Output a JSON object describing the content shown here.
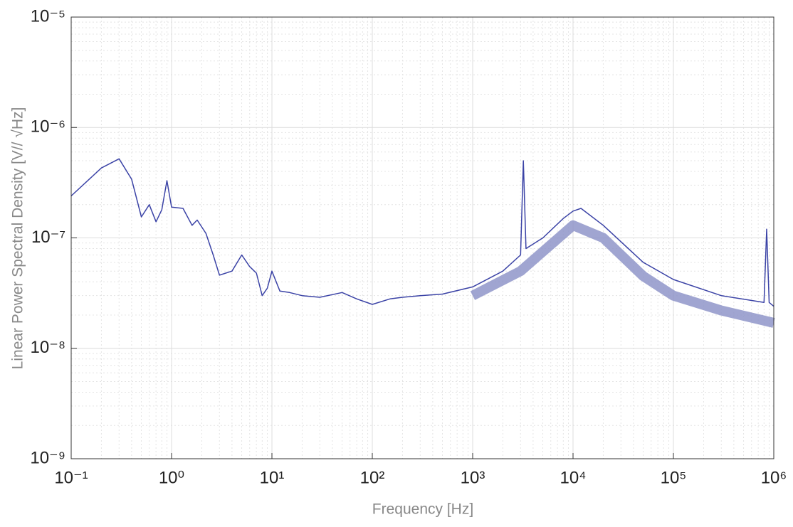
{
  "chart_data": {
    "type": "line",
    "xlabel": "Frequency [Hz]",
    "ylabel": "Linear Power Spectral Density [V// √Hz]",
    "xscale": "log",
    "yscale": "log",
    "grid": true,
    "minor_grid": true,
    "xlim": [
      0.1,
      1000000
    ],
    "ylim": [
      1e-09,
      1e-05
    ],
    "xticks": [
      {
        "value": 0.1,
        "label": "10⁻¹"
      },
      {
        "value": 1,
        "label": "10⁰"
      },
      {
        "value": 10,
        "label": "10¹"
      },
      {
        "value": 100,
        "label": "10²"
      },
      {
        "value": 1000,
        "label": "10³"
      },
      {
        "value": 10000,
        "label": "10⁴"
      },
      {
        "value": 100000,
        "label": "10⁵"
      },
      {
        "value": 1000000,
        "label": "10⁶"
      }
    ],
    "yticks": [
      {
        "value": 1e-09,
        "label": "10⁻⁹"
      },
      {
        "value": 1e-08,
        "label": "10⁻⁸"
      },
      {
        "value": 1e-07,
        "label": "10⁻⁷"
      },
      {
        "value": 1e-06,
        "label": "10⁻⁶"
      },
      {
        "value": 1e-05,
        "label": "10⁻⁵"
      }
    ],
    "series": [
      {
        "color": "#8f95c9",
        "width": 14,
        "x": [
          1000,
          3000,
          10000,
          20000,
          50000,
          100000,
          300000,
          1000000
        ],
        "values": [
          3e-08,
          5e-08,
          1.3e-07,
          1e-07,
          4.5e-08,
          3e-08,
          2.2e-08,
          1.7e-08
        ]
      },
      {
        "color": "#3b43a6",
        "width": 1.5,
        "x": [
          0.1,
          0.2,
          0.3,
          0.4,
          0.5,
          0.6,
          0.7,
          0.8,
          0.9,
          1,
          1.3,
          1.6,
          1.8,
          2.2,
          2.6,
          3,
          4,
          5,
          6,
          7,
          8,
          9,
          10,
          12,
          15,
          20,
          30,
          50,
          70,
          100,
          150,
          200,
          300,
          500,
          1000,
          2000,
          3000,
          3200,
          3400,
          5000,
          8000,
          10000,
          12000,
          20000,
          50000,
          100000,
          300000,
          800000,
          850000,
          900000,
          1000000
        ],
        "values": [
          2.4e-07,
          4.3e-07,
          5.2e-07,
          3.4e-07,
          1.55e-07,
          2e-07,
          1.4e-07,
          1.8e-07,
          3.3e-07,
          1.9e-07,
          1.85e-07,
          1.3e-07,
          1.45e-07,
          1.1e-07,
          7e-08,
          4.6e-08,
          5e-08,
          7e-08,
          5.5e-08,
          4.8e-08,
          3e-08,
          3.5e-08,
          5e-08,
          3.3e-08,
          3.2e-08,
          3e-08,
          2.9e-08,
          3.2e-08,
          2.8e-08,
          2.5e-08,
          2.8e-08,
          2.9e-08,
          3e-08,
          3.1e-08,
          3.6e-08,
          5e-08,
          7e-08,
          5e-07,
          8e-08,
          1e-07,
          1.5e-07,
          1.75e-07,
          1.85e-07,
          1.3e-07,
          6e-08,
          4.2e-08,
          3e-08,
          2.6e-08,
          1.2e-07,
          2.6e-08,
          2.4e-08
        ]
      }
    ]
  }
}
